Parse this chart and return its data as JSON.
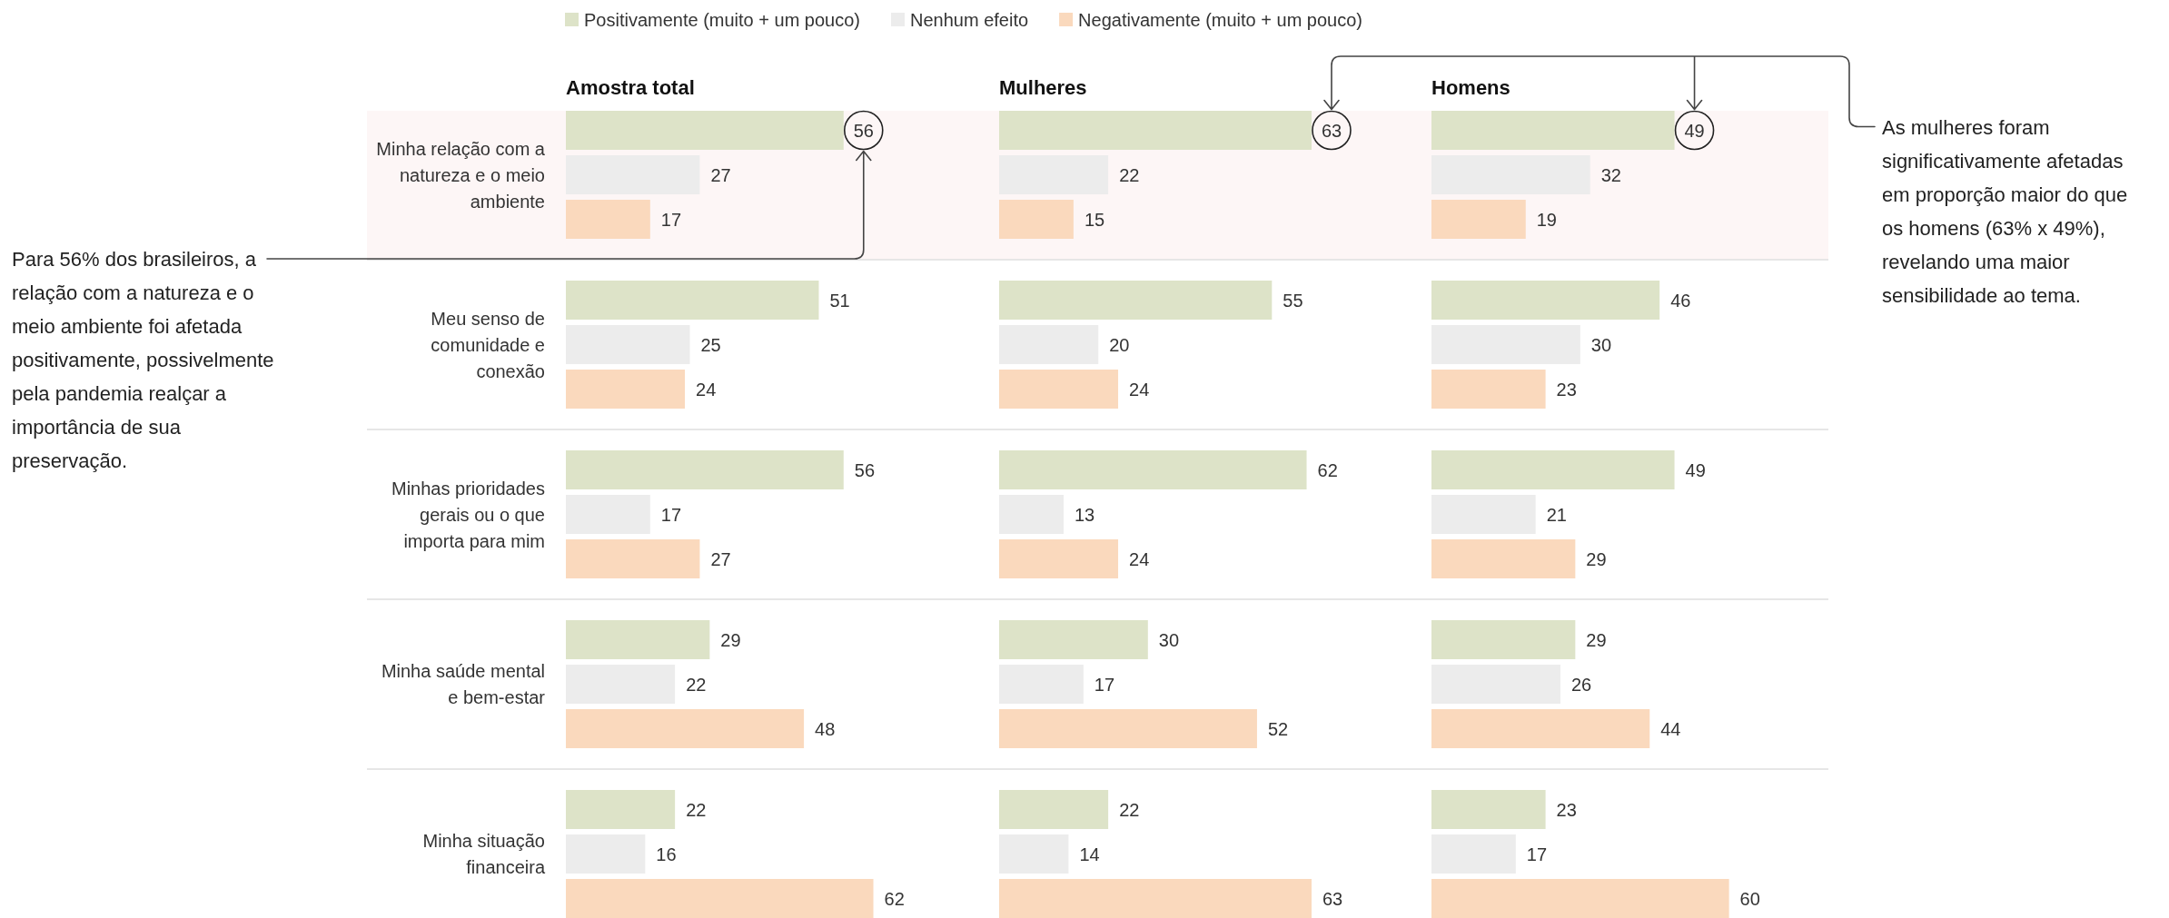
{
  "chart_data": [
    {
      "type": "bar",
      "orientation": "horizontal",
      "title": "Amostra total",
      "categories": [
        "Minha relação com a natureza e o meio ambiente",
        "Meu senso de comunidade e conexão",
        "Minhas prioridades gerais ou o que importa para mim",
        "Minha saúde mental e bem-estar",
        "Minha situação financeira"
      ],
      "series": [
        {
          "name": "Positivamente (muito + um pouco)",
          "color": "#dde3c8",
          "values": [
            56,
            51,
            56,
            29,
            22
          ]
        },
        {
          "name": "Nenhum efeito",
          "color": "#ececec",
          "values": [
            27,
            25,
            17,
            22,
            16
          ]
        },
        {
          "name": "Negativamente (muito + um pouco)",
          "color": "#fad9bd",
          "values": [
            17,
            24,
            27,
            48,
            62
          ]
        }
      ],
      "data_labels": true,
      "legend": "top",
      "tick_labels": "y",
      "grid": "y",
      "bands": [
        {
          "axis": "y",
          "from": "Minha relação com a natureza e o meio ambiente",
          "to": "Minha relação com a natureza e o meio ambiente",
          "color": "#fdf6f6"
        }
      ],
      "annotations": [
        "Para 56% dos brasileiros, a relação com a natureza e o meio ambiente foi afetada positivamente, possivelmente pela pandemia realçar a importância de sua preservação."
      ]
    },
    {
      "type": "bar",
      "orientation": "horizontal",
      "title": "Mulheres",
      "categories": [
        "Minha relação com a natureza e o meio ambiente",
        "Meu senso de comunidade e conexão",
        "Minhas prioridades gerais ou o que importa para mim",
        "Minha saúde mental e bem-estar",
        "Minha situação financeira"
      ],
      "series": [
        {
          "name": "Positivamente (muito + um pouco)",
          "color": "#dde3c8",
          "values": [
            63,
            55,
            62,
            30,
            22
          ]
        },
        {
          "name": "Nenhum efeito",
          "color": "#ececec",
          "values": [
            22,
            20,
            13,
            17,
            14
          ]
        },
        {
          "name": "Negativamente (muito + um pouco)",
          "color": "#fad9bd",
          "values": [
            15,
            24,
            24,
            52,
            63
          ]
        }
      ],
      "data_labels": true,
      "tick_labels": false,
      "grid": "y",
      "bands": [
        {
          "axis": "y",
          "from": "Minha relação com a natureza e o meio ambiente",
          "to": "Minha relação com a natureza e o meio ambiente",
          "color": "#fdf6f6"
        }
      ]
    },
    {
      "type": "bar",
      "orientation": "horizontal",
      "title": "Homens",
      "categories": [
        "Minha relação com a natureza e o meio ambiente",
        "Meu senso de comunidade e conexão",
        "Minhas prioridades gerais ou o que importa para mim",
        "Minha saúde mental e bem-estar",
        "Minha situação financeira"
      ],
      "series": [
        {
          "name": "Positivamente (muito + um pouco)",
          "color": "#dde3c8",
          "values": [
            49,
            46,
            49,
            29,
            23
          ]
        },
        {
          "name": "Nenhum efeito",
          "color": "#ececec",
          "values": [
            32,
            30,
            21,
            26,
            17
          ]
        },
        {
          "name": "Negativamente (muito + um pouco)",
          "color": "#fad9bd",
          "values": [
            19,
            23,
            29,
            44,
            60
          ]
        }
      ],
      "data_labels": true,
      "tick_labels": false,
      "grid": "y",
      "bands": [
        {
          "axis": "y",
          "from": "Minha relação com a natureza e o meio ambiente",
          "to": "Minha relação com a natureza e o meio ambiente",
          "color": "#fdf6f6"
        }
      ],
      "annotations": [
        "As mulheres foram significativamente afetadas em proporção maior do que os homens (63% x 49%), revelando uma maior sensibilidade ao tema."
      ]
    }
  ]
}
